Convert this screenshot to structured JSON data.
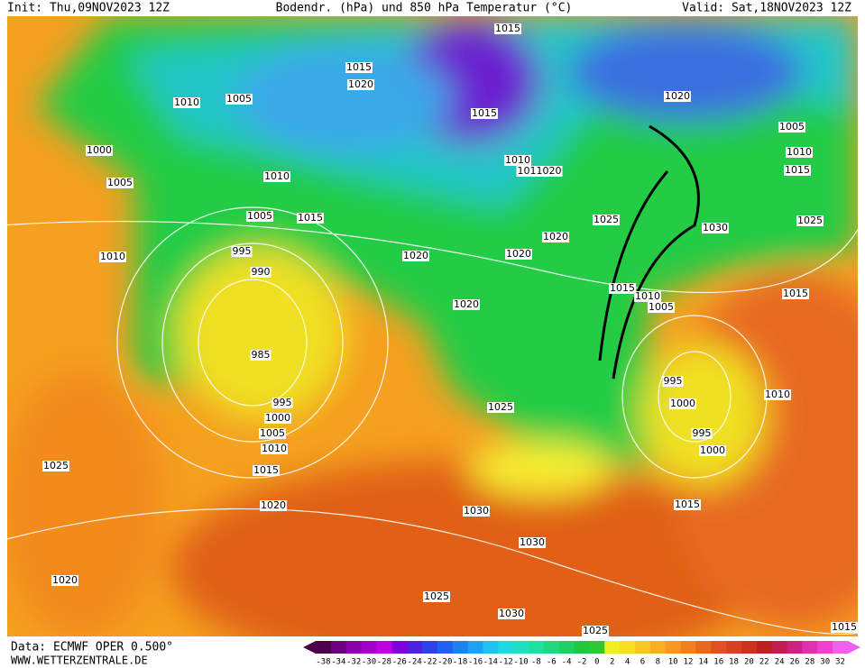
{
  "header": {
    "init": "Init: Thu,09NOV2023 12Z",
    "title": "Bodendr. (hPa) und 850 hPa Temperatur (°C)",
    "valid": "Valid: Sat,18NOV2023 12Z"
  },
  "footer": {
    "source": "Data: ECMWF OPER 0.500°",
    "site": "WWW.WETTERZENTRALE.DE"
  },
  "legend": {
    "ticks": [
      -38,
      -34,
      -32,
      -30,
      -28,
      -26,
      -24,
      -22,
      -20,
      -18,
      -16,
      -14,
      -12,
      -10,
      -8,
      -6,
      -4,
      -2,
      0,
      2,
      4,
      6,
      8,
      10,
      12,
      14,
      16,
      18,
      20,
      22,
      24,
      26,
      28,
      30,
      32
    ]
  },
  "isobar_labels": [
    "1015",
    "1015",
    "1020",
    "1010",
    "1005",
    "1015",
    "1020",
    "1005",
    "1010",
    "1015",
    "1000",
    "1005",
    "1010",
    "1011020",
    "1010",
    "1005",
    "1015",
    "1025",
    "1030",
    "1025",
    "1020",
    "1020",
    "1020",
    "1010",
    "995",
    "990",
    "1015",
    "1010",
    "1005",
    "1015",
    "1020",
    "985",
    "995",
    "1000",
    "1010",
    "1025",
    "995",
    "1000",
    "1005",
    "1010",
    "995",
    "1000",
    "1025",
    "1015",
    "1020",
    "1015",
    "1030",
    "1030",
    "1020",
    "1025",
    "1030",
    "1025",
    "1015"
  ]
}
